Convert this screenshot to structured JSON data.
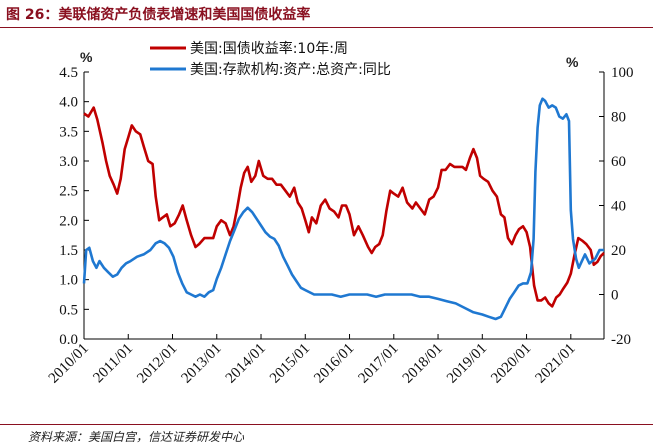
{
  "figure": {
    "title": "图 26：美联储资产负债表增速和美国国债收益率",
    "source": "资料来源：美国白宫，信达证券研发中心"
  },
  "chart_data": {
    "type": "line",
    "left_unit": "%",
    "right_unit": "%",
    "y_left": {
      "lim": [
        0,
        4.5
      ],
      "ticks": [
        "0.0",
        "0.5",
        "1.0",
        "1.5",
        "2.0",
        "2.5",
        "3.0",
        "3.5",
        "4.0",
        "4.5"
      ]
    },
    "y_right": {
      "lim": [
        -20,
        100
      ],
      "ticks": [
        "-20",
        "0",
        "20",
        "40",
        "60",
        "80",
        "100"
      ]
    },
    "x": {
      "range": [
        2010.0,
        2021.75
      ],
      "ticks": [
        "2010/01",
        "2011/01",
        "2012/01",
        "2013/01",
        "2014/01",
        "2015/01",
        "2016/01",
        "2017/01",
        "2018/01",
        "2019/01",
        "2020/01",
        "2021/01"
      ]
    },
    "grid": false,
    "legend_position": "top-left",
    "series": [
      {
        "name": "美国:国债收益率:10年:周",
        "axis": "left",
        "color": "#c00000",
        "points": [
          [
            2010.0,
            3.8
          ],
          [
            2010.1,
            3.75
          ],
          [
            2010.22,
            3.9
          ],
          [
            2010.3,
            3.7
          ],
          [
            2010.42,
            3.3
          ],
          [
            2010.5,
            3.0
          ],
          [
            2010.58,
            2.75
          ],
          [
            2010.67,
            2.6
          ],
          [
            2010.75,
            2.45
          ],
          [
            2010.83,
            2.7
          ],
          [
            2010.92,
            3.2
          ],
          [
            2011.0,
            3.4
          ],
          [
            2011.08,
            3.6
          ],
          [
            2011.17,
            3.5
          ],
          [
            2011.27,
            3.45
          ],
          [
            2011.35,
            3.25
          ],
          [
            2011.45,
            3.0
          ],
          [
            2011.55,
            2.95
          ],
          [
            2011.62,
            2.4
          ],
          [
            2011.7,
            2.0
          ],
          [
            2011.78,
            2.05
          ],
          [
            2011.87,
            2.1
          ],
          [
            2011.95,
            1.9
          ],
          [
            2012.05,
            1.95
          ],
          [
            2012.15,
            2.1
          ],
          [
            2012.23,
            2.25
          ],
          [
            2012.32,
            2.0
          ],
          [
            2012.42,
            1.75
          ],
          [
            2012.52,
            1.55
          ],
          [
            2012.6,
            1.6
          ],
          [
            2012.72,
            1.7
          ],
          [
            2012.82,
            1.7
          ],
          [
            2012.92,
            1.7
          ],
          [
            2013.0,
            1.9
          ],
          [
            2013.1,
            2.0
          ],
          [
            2013.2,
            1.95
          ],
          [
            2013.3,
            1.75
          ],
          [
            2013.38,
            1.9
          ],
          [
            2013.46,
            2.2
          ],
          [
            2013.54,
            2.55
          ],
          [
            2013.62,
            2.8
          ],
          [
            2013.7,
            2.9
          ],
          [
            2013.78,
            2.65
          ],
          [
            2013.87,
            2.75
          ],
          [
            2013.95,
            3.0
          ],
          [
            2014.05,
            2.75
          ],
          [
            2014.15,
            2.7
          ],
          [
            2014.25,
            2.7
          ],
          [
            2014.35,
            2.6
          ],
          [
            2014.45,
            2.6
          ],
          [
            2014.55,
            2.5
          ],
          [
            2014.65,
            2.4
          ],
          [
            2014.75,
            2.55
          ],
          [
            2014.83,
            2.3
          ],
          [
            2014.92,
            2.2
          ],
          [
            2015.0,
            2.0
          ],
          [
            2015.08,
            1.8
          ],
          [
            2015.15,
            2.05
          ],
          [
            2015.25,
            1.95
          ],
          [
            2015.35,
            2.25
          ],
          [
            2015.45,
            2.35
          ],
          [
            2015.55,
            2.2
          ],
          [
            2015.65,
            2.15
          ],
          [
            2015.75,
            2.05
          ],
          [
            2015.83,
            2.25
          ],
          [
            2015.92,
            2.25
          ],
          [
            2016.0,
            2.1
          ],
          [
            2016.1,
            1.75
          ],
          [
            2016.2,
            1.9
          ],
          [
            2016.3,
            1.75
          ],
          [
            2016.42,
            1.55
          ],
          [
            2016.5,
            1.45
          ],
          [
            2016.58,
            1.55
          ],
          [
            2016.67,
            1.6
          ],
          [
            2016.75,
            1.75
          ],
          [
            2016.83,
            2.15
          ],
          [
            2016.92,
            2.5
          ],
          [
            2017.0,
            2.45
          ],
          [
            2017.1,
            2.4
          ],
          [
            2017.2,
            2.55
          ],
          [
            2017.3,
            2.3
          ],
          [
            2017.42,
            2.2
          ],
          [
            2017.5,
            2.3
          ],
          [
            2017.6,
            2.2
          ],
          [
            2017.7,
            2.1
          ],
          [
            2017.8,
            2.35
          ],
          [
            2017.9,
            2.4
          ],
          [
            2018.0,
            2.55
          ],
          [
            2018.08,
            2.85
          ],
          [
            2018.17,
            2.85
          ],
          [
            2018.27,
            2.95
          ],
          [
            2018.37,
            2.9
          ],
          [
            2018.47,
            2.9
          ],
          [
            2018.55,
            2.9
          ],
          [
            2018.63,
            2.85
          ],
          [
            2018.72,
            3.05
          ],
          [
            2018.8,
            3.2
          ],
          [
            2018.88,
            3.05
          ],
          [
            2018.95,
            2.75
          ],
          [
            2019.03,
            2.7
          ],
          [
            2019.13,
            2.65
          ],
          [
            2019.23,
            2.5
          ],
          [
            2019.33,
            2.4
          ],
          [
            2019.42,
            2.1
          ],
          [
            2019.5,
            2.05
          ],
          [
            2019.58,
            1.7
          ],
          [
            2019.67,
            1.6
          ],
          [
            2019.75,
            1.75
          ],
          [
            2019.83,
            1.85
          ],
          [
            2019.92,
            1.9
          ],
          [
            2020.0,
            1.8
          ],
          [
            2020.08,
            1.55
          ],
          [
            2020.17,
            0.9
          ],
          [
            2020.25,
            0.65
          ],
          [
            2020.33,
            0.65
          ],
          [
            2020.42,
            0.7
          ],
          [
            2020.5,
            0.6
          ],
          [
            2020.58,
            0.55
          ],
          [
            2020.67,
            0.7
          ],
          [
            2020.75,
            0.75
          ],
          [
            2020.83,
            0.85
          ],
          [
            2020.92,
            0.95
          ],
          [
            2021.0,
            1.1
          ],
          [
            2021.08,
            1.4
          ],
          [
            2021.17,
            1.7
          ],
          [
            2021.27,
            1.65
          ],
          [
            2021.35,
            1.6
          ],
          [
            2021.45,
            1.5
          ],
          [
            2021.52,
            1.25
          ],
          [
            2021.6,
            1.3
          ],
          [
            2021.68,
            1.4
          ],
          [
            2021.75,
            1.45
          ]
        ]
      },
      {
        "name": "美国:存款机构:资产:总资产:同比",
        "axis": "right",
        "color": "#1f78d1",
        "points": [
          [
            2010.0,
            5
          ],
          [
            2010.05,
            20
          ],
          [
            2010.12,
            21
          ],
          [
            2010.2,
            15
          ],
          [
            2010.28,
            12
          ],
          [
            2010.35,
            15
          ],
          [
            2010.45,
            12
          ],
          [
            2010.55,
            10
          ],
          [
            2010.65,
            8
          ],
          [
            2010.75,
            9
          ],
          [
            2010.85,
            12
          ],
          [
            2010.95,
            14
          ],
          [
            2011.05,
            15
          ],
          [
            2011.2,
            17
          ],
          [
            2011.35,
            18
          ],
          [
            2011.5,
            20
          ],
          [
            2011.62,
            23
          ],
          [
            2011.72,
            24
          ],
          [
            2011.82,
            23
          ],
          [
            2011.92,
            21
          ],
          [
            2012.02,
            17
          ],
          [
            2012.12,
            10
          ],
          [
            2012.22,
            5
          ],
          [
            2012.32,
            1
          ],
          [
            2012.42,
            0
          ],
          [
            2012.52,
            -1
          ],
          [
            2012.62,
            0
          ],
          [
            2012.72,
            -1
          ],
          [
            2012.82,
            1
          ],
          [
            2012.92,
            2
          ],
          [
            2013.0,
            7
          ],
          [
            2013.1,
            12
          ],
          [
            2013.2,
            18
          ],
          [
            2013.3,
            24
          ],
          [
            2013.4,
            29
          ],
          [
            2013.5,
            34
          ],
          [
            2013.6,
            37
          ],
          [
            2013.7,
            39
          ],
          [
            2013.8,
            37
          ],
          [
            2013.9,
            34
          ],
          [
            2014.0,
            31
          ],
          [
            2014.1,
            28
          ],
          [
            2014.2,
            26
          ],
          [
            2014.3,
            25
          ],
          [
            2014.4,
            22
          ],
          [
            2014.5,
            17
          ],
          [
            2014.6,
            13
          ],
          [
            2014.7,
            9
          ],
          [
            2014.8,
            6
          ],
          [
            2014.9,
            3
          ],
          [
            2015.0,
            2
          ],
          [
            2015.2,
            0
          ],
          [
            2015.4,
            0
          ],
          [
            2015.6,
            0
          ],
          [
            2015.8,
            -1
          ],
          [
            2016.0,
            0
          ],
          [
            2016.2,
            0
          ],
          [
            2016.4,
            0
          ],
          [
            2016.6,
            -1
          ],
          [
            2016.8,
            0
          ],
          [
            2017.0,
            0
          ],
          [
            2017.2,
            0
          ],
          [
            2017.4,
            0
          ],
          [
            2017.6,
            -1
          ],
          [
            2017.8,
            -1
          ],
          [
            2018.0,
            -2
          ],
          [
            2018.2,
            -3
          ],
          [
            2018.4,
            -4
          ],
          [
            2018.6,
            -6
          ],
          [
            2018.8,
            -8
          ],
          [
            2019.0,
            -9
          ],
          [
            2019.15,
            -10
          ],
          [
            2019.3,
            -11
          ],
          [
            2019.42,
            -10
          ],
          [
            2019.52,
            -6
          ],
          [
            2019.62,
            -2
          ],
          [
            2019.72,
            1
          ],
          [
            2019.82,
            4
          ],
          [
            2019.92,
            5
          ],
          [
            2020.02,
            5
          ],
          [
            2020.1,
            10
          ],
          [
            2020.16,
            25
          ],
          [
            2020.2,
            55
          ],
          [
            2020.25,
            75
          ],
          [
            2020.3,
            85
          ],
          [
            2020.36,
            88
          ],
          [
            2020.42,
            87
          ],
          [
            2020.5,
            84
          ],
          [
            2020.58,
            85
          ],
          [
            2020.66,
            84
          ],
          [
            2020.74,
            80
          ],
          [
            2020.82,
            79
          ],
          [
            2020.9,
            81
          ],
          [
            2020.96,
            78
          ],
          [
            2021.0,
            38
          ],
          [
            2021.05,
            25
          ],
          [
            2021.12,
            16
          ],
          [
            2021.18,
            12
          ],
          [
            2021.25,
            15
          ],
          [
            2021.32,
            18
          ],
          [
            2021.42,
            14
          ],
          [
            2021.55,
            16
          ],
          [
            2021.65,
            20
          ],
          [
            2021.75,
            20
          ]
        ]
      }
    ]
  }
}
